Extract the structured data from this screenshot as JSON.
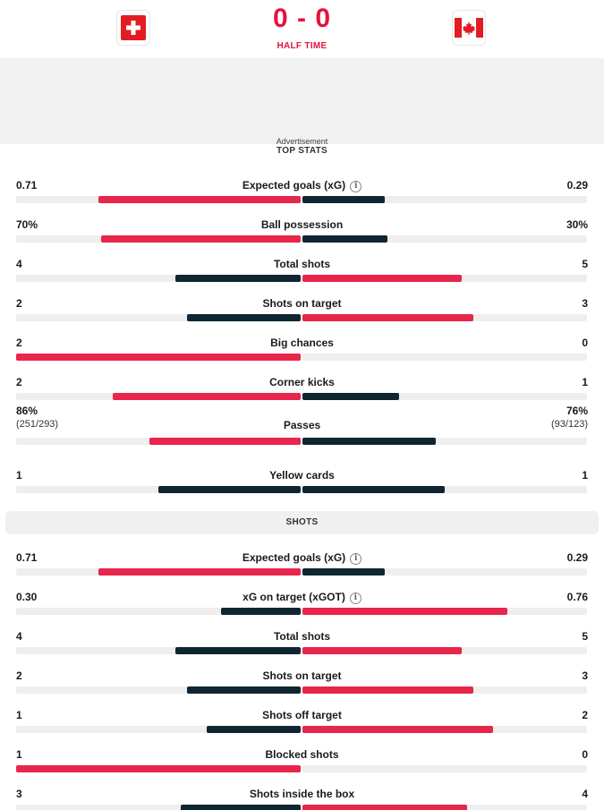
{
  "match": {
    "score": "0 - 0",
    "status": "HALF TIME",
    "home_flag": "switzerland-flag-icon",
    "away_flag": "canada-flag-icon"
  },
  "ad": {
    "label": "Advertisement"
  },
  "colors": {
    "accent": "#e3143f",
    "bar_red": "#e8254b",
    "bar_dark": "#0f2632",
    "track": "#eeeeee"
  },
  "top_stats": {
    "title": "TOP STATS",
    "stats": [
      {
        "label": "Expected goals (xG)",
        "info": true,
        "home": "0.71",
        "away": "0.29",
        "home_frac": 0.71,
        "away_frac": 0.29,
        "home_color": "red",
        "away_color": "dark"
      },
      {
        "label": "Ball possession",
        "home": "70%",
        "away": "30%",
        "home_frac": 0.7,
        "away_frac": 0.3,
        "home_color": "red",
        "away_color": "dark"
      },
      {
        "label": "Total shots",
        "home": "4",
        "away": "5",
        "home_frac": 0.44,
        "away_frac": 0.56,
        "home_color": "dark",
        "away_color": "red"
      },
      {
        "label": "Shots on target",
        "home": "2",
        "away": "3",
        "home_frac": 0.4,
        "away_frac": 0.6,
        "home_color": "dark",
        "away_color": "red"
      },
      {
        "label": "Big chances",
        "home": "2",
        "away": "0",
        "home_frac": 1.0,
        "away_frac": 0.0,
        "home_color": "red",
        "away_color": "dark"
      },
      {
        "label": "Corner kicks",
        "home": "2",
        "away": "1",
        "home_frac": 0.66,
        "away_frac": 0.34,
        "home_color": "red",
        "away_color": "dark"
      },
      {
        "label": "Passes",
        "home": "86%",
        "away": "76%",
        "home_sub": "(251/293)",
        "away_sub": "(93/123)",
        "home_frac": 0.53,
        "away_frac": 0.47,
        "home_color": "red",
        "away_color": "dark"
      },
      {
        "label": "Yellow cards",
        "home": "1",
        "away": "1",
        "home_frac": 0.5,
        "away_frac": 0.5,
        "home_color": "dark",
        "away_color": "dark"
      }
    ]
  },
  "shots": {
    "title": "SHOTS",
    "stats": [
      {
        "label": "Expected goals (xG)",
        "info": true,
        "home": "0.71",
        "away": "0.29",
        "home_frac": 0.71,
        "away_frac": 0.29,
        "home_color": "red",
        "away_color": "dark"
      },
      {
        "label": "xG on target (xGOT)",
        "info": true,
        "home": "0.30",
        "away": "0.76",
        "home_frac": 0.28,
        "away_frac": 0.72,
        "home_color": "dark",
        "away_color": "red"
      },
      {
        "label": "Total shots",
        "home": "4",
        "away": "5",
        "home_frac": 0.44,
        "away_frac": 0.56,
        "home_color": "dark",
        "away_color": "red"
      },
      {
        "label": "Shots on target",
        "home": "2",
        "away": "3",
        "home_frac": 0.4,
        "away_frac": 0.6,
        "home_color": "dark",
        "away_color": "red"
      },
      {
        "label": "Shots off target",
        "home": "1",
        "away": "2",
        "home_frac": 0.33,
        "away_frac": 0.67,
        "home_color": "dark",
        "away_color": "red"
      },
      {
        "label": "Blocked shots",
        "home": "1",
        "away": "0",
        "home_frac": 1.0,
        "away_frac": 0.0,
        "home_color": "red",
        "away_color": "dark"
      },
      {
        "label": "Shots inside the box",
        "home": "3",
        "away": "4",
        "home_frac": 0.42,
        "away_frac": 0.58,
        "home_color": "dark",
        "away_color": "red"
      }
    ]
  }
}
